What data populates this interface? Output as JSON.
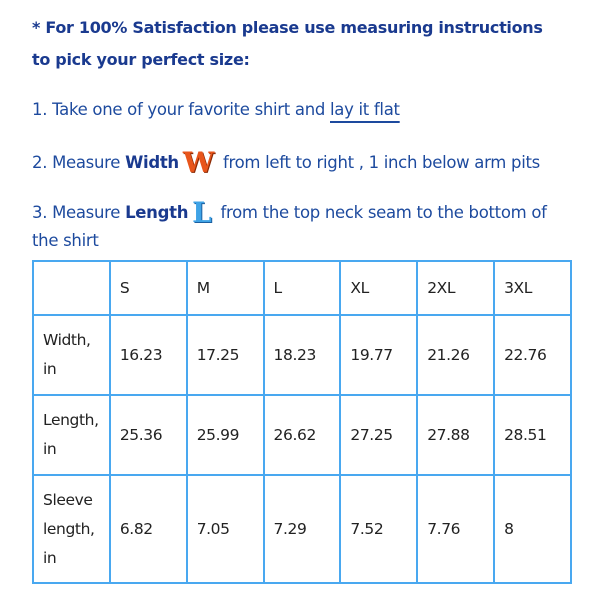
{
  "intro": {
    "line1": "* For 100% Satisfaction please use measuring instructions",
    "line2": "to pick your perfect size:"
  },
  "steps": [
    {
      "prefix": "1. Take one of your favorite shirt and ",
      "link": "lay it flat"
    },
    {
      "prefix": "2. Measure ",
      "bold": "Width",
      "icon_letter": "W",
      "suffix": " from left to right , 1 inch below arm pits"
    },
    {
      "prefix": "3. Measure ",
      "bold": "Length",
      "icon_letter": "L",
      "suffix": " from the top neck seam to the bottom of",
      "continuation": "the shirt"
    }
  ],
  "colors": {
    "text": "#1d4a9e",
    "table_border": "#49a8f0",
    "width_icon": "#e8551b",
    "length_icon": "#3fa3e6"
  },
  "table": {
    "headers": [
      "",
      "S",
      "M",
      "L",
      "XL",
      "2XL",
      "3XL"
    ],
    "rows": [
      {
        "label": "Width, in",
        "values": [
          "16.23",
          "17.25",
          "18.23",
          "19.77",
          "21.26",
          "22.76"
        ]
      },
      {
        "label": "Length, in",
        "values": [
          "25.36",
          "25.99",
          "26.62",
          "27.25",
          "27.88",
          "28.51"
        ]
      },
      {
        "label": "Sleeve length, in",
        "values": [
          "6.82",
          "7.05",
          "7.29",
          "7.52",
          "7.76",
          "8"
        ]
      }
    ]
  }
}
